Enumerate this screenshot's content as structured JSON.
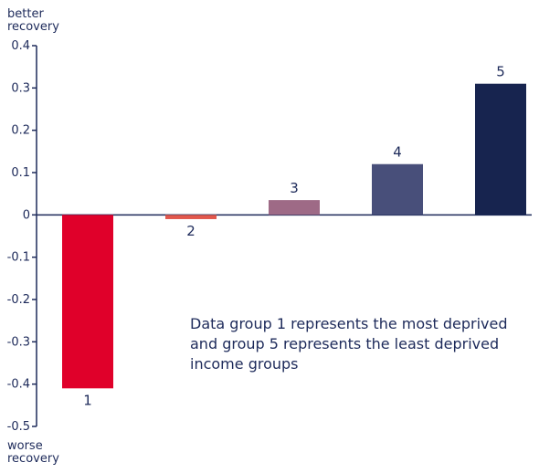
{
  "chart_data": {
    "type": "bar",
    "categories": [
      "1",
      "2",
      "3",
      "4",
      "5"
    ],
    "values": [
      -0.41,
      -0.01,
      0.035,
      0.12,
      0.31
    ],
    "colors": [
      "#e0002a",
      "#e2574c",
      "#9e6a86",
      "#484f7a",
      "#17244f"
    ],
    "ylim": [
      -0.5,
      0.4
    ],
    "yticks": [
      "0.4",
      "0.3",
      "0.2",
      "0.1",
      "0",
      "-0.1",
      "-0.2",
      "-0.3",
      "-0.4",
      "-0.5"
    ],
    "ytick_values": [
      0.4,
      0.3,
      0.2,
      0.1,
      0,
      -0.1,
      -0.2,
      -0.3,
      -0.4,
      -0.5
    ],
    "y_top_label": [
      "better",
      "recovery"
    ],
    "y_bottom_label": [
      "worse",
      "recovery"
    ],
    "note_lines": [
      "Data group 1 represents the most deprived",
      "and group 5 represents the least deprived",
      "income groups"
    ],
    "axis_color": "#1d2a5a"
  }
}
